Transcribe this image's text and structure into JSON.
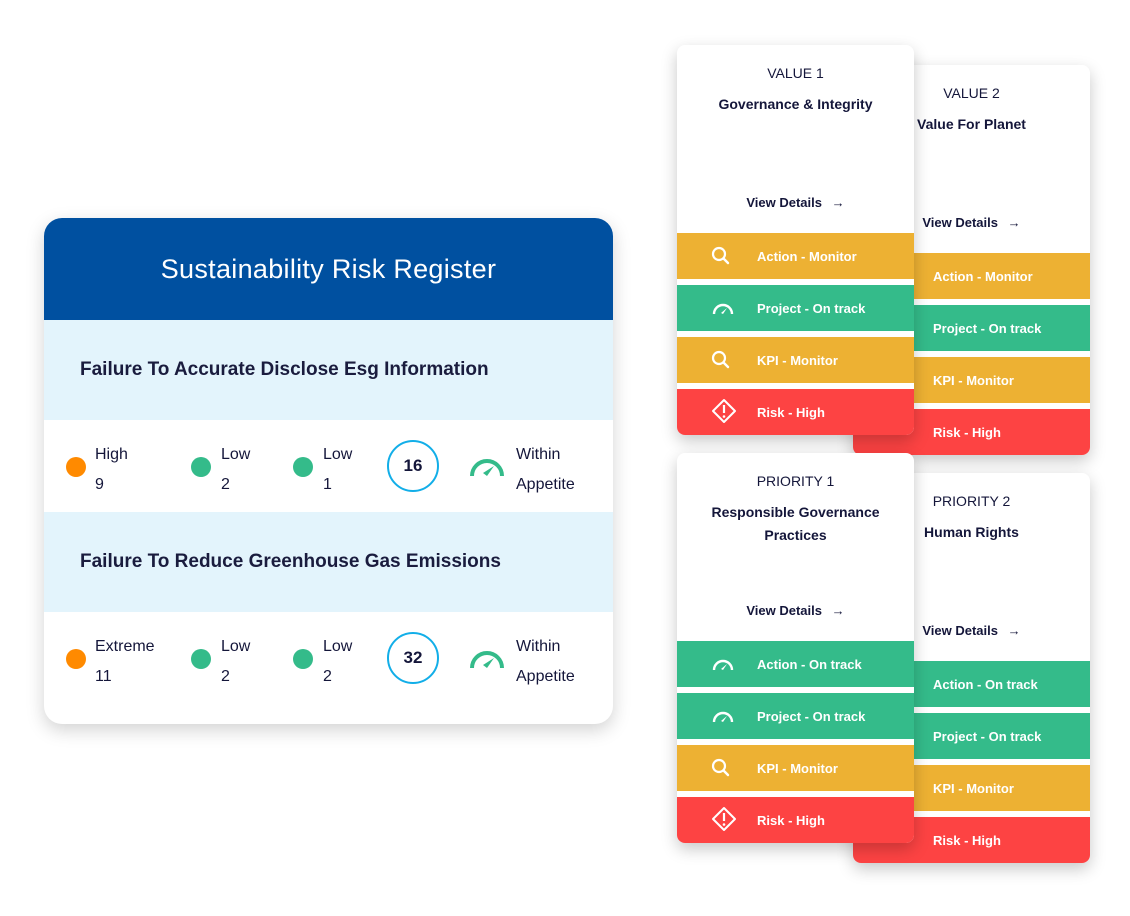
{
  "register": {
    "title": "Sustainability Risk Register",
    "risks": [
      {
        "name": "Failure To Accurate Disclose Esg Information",
        "stats": [
          {
            "label": "High",
            "value": "9",
            "color": "#ff8a00"
          },
          {
            "label": "Low",
            "value": "2",
            "color": "#34bb8a"
          },
          {
            "label": "Low",
            "value": "1",
            "color": "#34bb8a"
          }
        ],
        "score": "16",
        "appetite": [
          "Within",
          "Appetite"
        ]
      },
      {
        "name": "Failure To Reduce Greenhouse Gas Emissions",
        "stats": [
          {
            "label": "Extreme",
            "value": "11",
            "color": "#ff8a00"
          },
          {
            "label": "Low",
            "value": "2",
            "color": "#34bb8a"
          },
          {
            "label": "Low",
            "value": "2",
            "color": "#34bb8a"
          }
        ],
        "score": "32",
        "appetite": [
          "Within",
          "Appetite"
        ]
      }
    ]
  },
  "colors": {
    "monitor": "#edb133",
    "on_track": "#34bb8a",
    "high": "#fd4343"
  },
  "cards": [
    {
      "tag": "VALUE 1",
      "name": "Governance & Integrity",
      "link": "View Details",
      "rows": [
        {
          "label": "Action - Monitor",
          "status": "monitor",
          "icon": "search-icon"
        },
        {
          "label": "Project - On track",
          "status": "on_track",
          "icon": "gauge-icon"
        },
        {
          "label": "KPI - Monitor",
          "status": "monitor",
          "icon": "search-icon"
        },
        {
          "label": "Risk - High",
          "status": "high",
          "icon": "warning-icon"
        }
      ]
    },
    {
      "tag": "VALUE 2",
      "name": "Value For Planet",
      "link": "View Details",
      "rows": [
        {
          "label": "Action - Monitor",
          "status": "monitor"
        },
        {
          "label": "Project - On track",
          "status": "on_track"
        },
        {
          "label": "KPI - Monitor",
          "status": "monitor"
        },
        {
          "label": "Risk - High",
          "status": "high"
        }
      ]
    },
    {
      "tag": "PRIORITY 1",
      "name": "Responsible Governance Practices",
      "link": "View Details",
      "rows": [
        {
          "label": "Action - On track",
          "status": "on_track",
          "icon": "gauge-icon"
        },
        {
          "label": "Project - On track",
          "status": "on_track",
          "icon": "gauge-icon"
        },
        {
          "label": "KPI - Monitor",
          "status": "monitor",
          "icon": "search-icon"
        },
        {
          "label": "Risk - High",
          "status": "high",
          "icon": "warning-icon"
        }
      ]
    },
    {
      "tag": "PRIORITY 2",
      "name": "Human Rights",
      "link": "View Details",
      "rows": [
        {
          "label": "Action - On track",
          "status": "on_track"
        },
        {
          "label": "Project - On track",
          "status": "on_track"
        },
        {
          "label": "KPI - Monitor",
          "status": "monitor"
        },
        {
          "label": "Risk - High",
          "status": "high"
        }
      ]
    }
  ]
}
